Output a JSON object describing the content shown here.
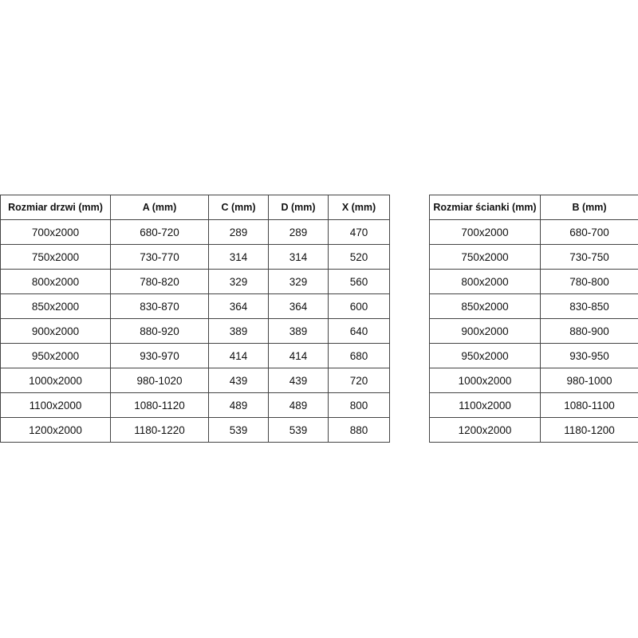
{
  "door_table": {
    "headers": [
      "Rozmiar drzwi (mm)",
      "A (mm)",
      "C (mm)",
      "D (mm)",
      "X (mm)"
    ],
    "rows": [
      [
        "700x2000",
        "680-720",
        "289",
        "289",
        "470"
      ],
      [
        "750x2000",
        "730-770",
        "314",
        "314",
        "520"
      ],
      [
        "800x2000",
        "780-820",
        "329",
        "329",
        "560"
      ],
      [
        "850x2000",
        "830-870",
        "364",
        "364",
        "600"
      ],
      [
        "900x2000",
        "880-920",
        "389",
        "389",
        "640"
      ],
      [
        "950x2000",
        "930-970",
        "414",
        "414",
        "680"
      ],
      [
        "1000x2000",
        "980-1020",
        "439",
        "439",
        "720"
      ],
      [
        "1100x2000",
        "1080-1120",
        "489",
        "489",
        "800"
      ],
      [
        "1200x2000",
        "1180-1220",
        "539",
        "539",
        "880"
      ]
    ]
  },
  "wall_table": {
    "headers": [
      "Rozmiar ścianki (mm)",
      "B (mm)"
    ],
    "rows": [
      [
        "700x2000",
        "680-700"
      ],
      [
        "750x2000",
        "730-750"
      ],
      [
        "800x2000",
        "780-800"
      ],
      [
        "850x2000",
        "830-850"
      ],
      [
        "900x2000",
        "880-900"
      ],
      [
        "950x2000",
        "930-950"
      ],
      [
        "1000x2000",
        "980-1000"
      ],
      [
        "1100x2000",
        "1080-1100"
      ],
      [
        "1200x2000",
        "1180-1200"
      ]
    ]
  }
}
